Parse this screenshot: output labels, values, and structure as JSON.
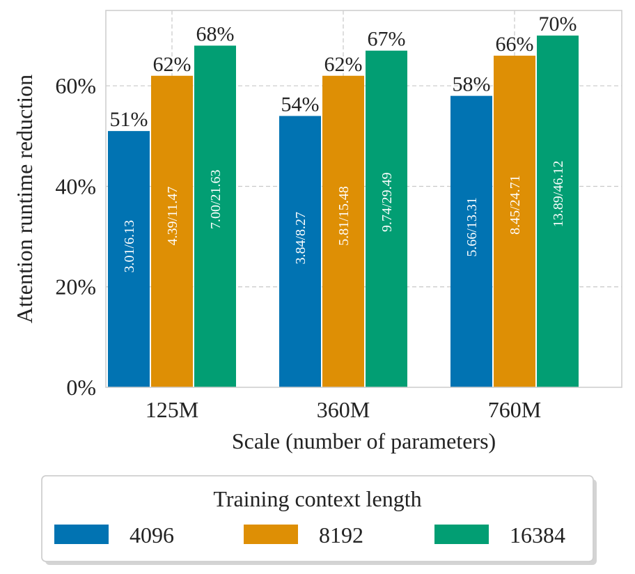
{
  "chart_data": {
    "type": "bar",
    "title": "",
    "xlabel": "Scale (number of parameters)",
    "ylabel": "Attention runtime reduction",
    "categories": [
      "125M",
      "360M",
      "760M"
    ],
    "ylim": [
      0,
      75
    ],
    "yticks": [
      0,
      20,
      40,
      60
    ],
    "ytick_labels": [
      "0%",
      "20%",
      "40%",
      "60%"
    ],
    "grid": true,
    "series": [
      {
        "name": "4096",
        "color": "#0173B2",
        "values": [
          51,
          54,
          58
        ],
        "value_labels": [
          "51%",
          "54%",
          "58%"
        ],
        "inner_labels": [
          "3.01/6.13",
          "3.84/8.27",
          "5.66/13.31"
        ]
      },
      {
        "name": "8192",
        "color": "#DE8F05",
        "values": [
          62,
          62,
          66
        ],
        "value_labels": [
          "62%",
          "62%",
          "66%"
        ],
        "inner_labels": [
          "4.39/11.47",
          "5.81/15.48",
          "8.45/24.71"
        ]
      },
      {
        "name": "16384",
        "color": "#029E73",
        "values": [
          68,
          67,
          70
        ],
        "value_labels": [
          "68%",
          "67%",
          "70%"
        ],
        "inner_labels": [
          "7.00/21.63",
          "9.74/29.49",
          "13.89/46.12"
        ]
      }
    ],
    "legend": {
      "title": "Training context length",
      "placement": "bottom-center",
      "labels": [
        "4096",
        "8192",
        "16384"
      ]
    }
  }
}
